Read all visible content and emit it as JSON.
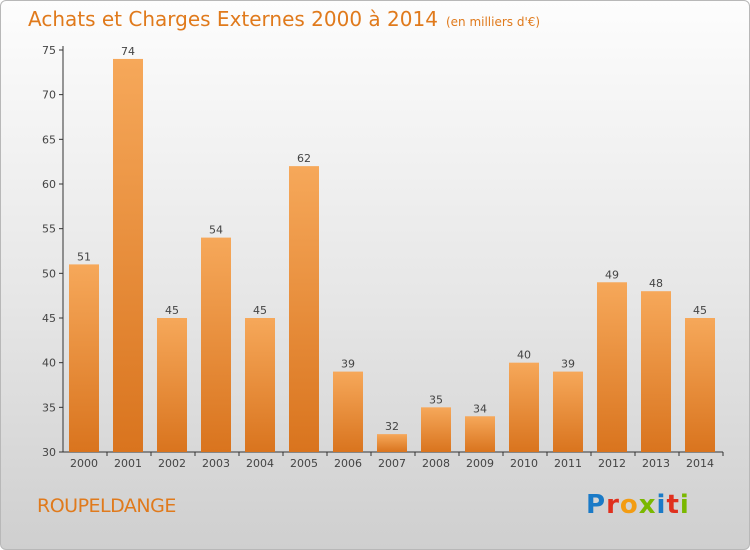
{
  "title": "Achats et Charges Externes 2000 à 2014",
  "subtitle": "(en milliers d'€)",
  "commune": "ROUPELDANGE",
  "logo": {
    "text": "Proxiti",
    "colors": [
      "#1a7ac7",
      "#e0301e",
      "#f39c12",
      "#7ab800",
      "#1a7ac7",
      "#e0301e",
      "#7ab800"
    ]
  },
  "chart_data": {
    "type": "bar",
    "title": "Achats et Charges Externes 2000 à 2014",
    "subtitle": "(en milliers d'€)",
    "xlabel": "",
    "ylabel": "",
    "categories": [
      "2000",
      "2001",
      "2002",
      "2003",
      "2004",
      "2005",
      "2006",
      "2007",
      "2008",
      "2009",
      "2010",
      "2011",
      "2012",
      "2013",
      "2014"
    ],
    "values": [
      51,
      74,
      45,
      54,
      45,
      62,
      39,
      32,
      35,
      34,
      40,
      39,
      49,
      48,
      45
    ],
    "ylim": [
      30,
      75
    ],
    "yticks": [
      30,
      35,
      40,
      45,
      50,
      55,
      60,
      65,
      70,
      75
    ],
    "grid": false,
    "bar_color_top": "#f6a85a",
    "bar_color_bottom": "#d9741e"
  }
}
